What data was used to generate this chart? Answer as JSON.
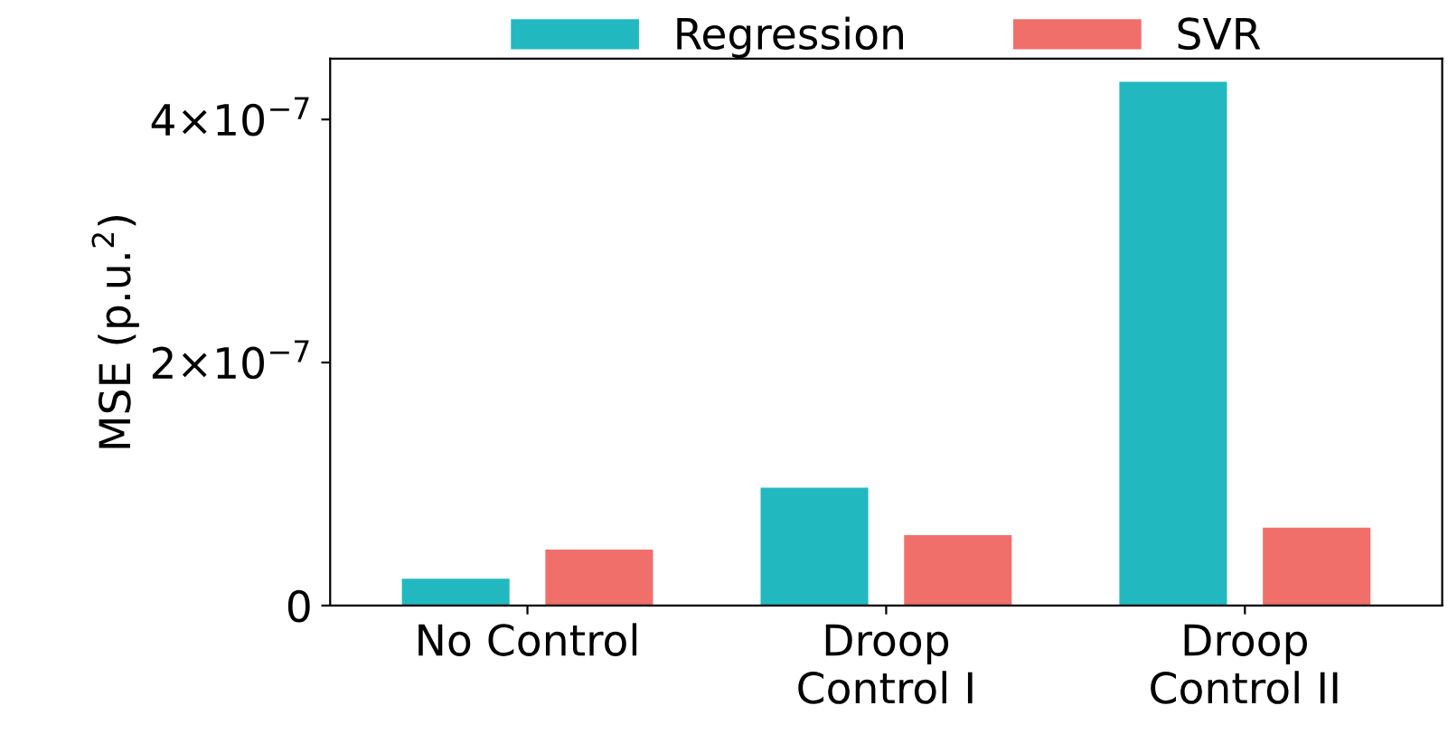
{
  "chart_data": {
    "type": "bar",
    "ylabel": "MSE (p.u.$^{2}$)",
    "categories": [
      "No Control",
      "Droop\nControl I",
      "Droop\nControl II"
    ],
    "series": [
      {
        "name": "Regression",
        "color": "#22b8bf",
        "values": [
          2.2e-08,
          9.7e-08,
          4.31e-07
        ]
      },
      {
        "name": "SVR",
        "color": "#f06f6a",
        "values": [
          4.6e-08,
          5.8e-08,
          6.4e-08
        ]
      }
    ],
    "ylim": [
      0,
      4.5e-07
    ],
    "yticks": [
      0,
      {
        "value": 2e-07,
        "label": "2×10$^{−7}$"
      },
      {
        "value": 4e-07,
        "label": "4×10$^{−7}$"
      }
    ],
    "grid": false,
    "legend": "top"
  }
}
